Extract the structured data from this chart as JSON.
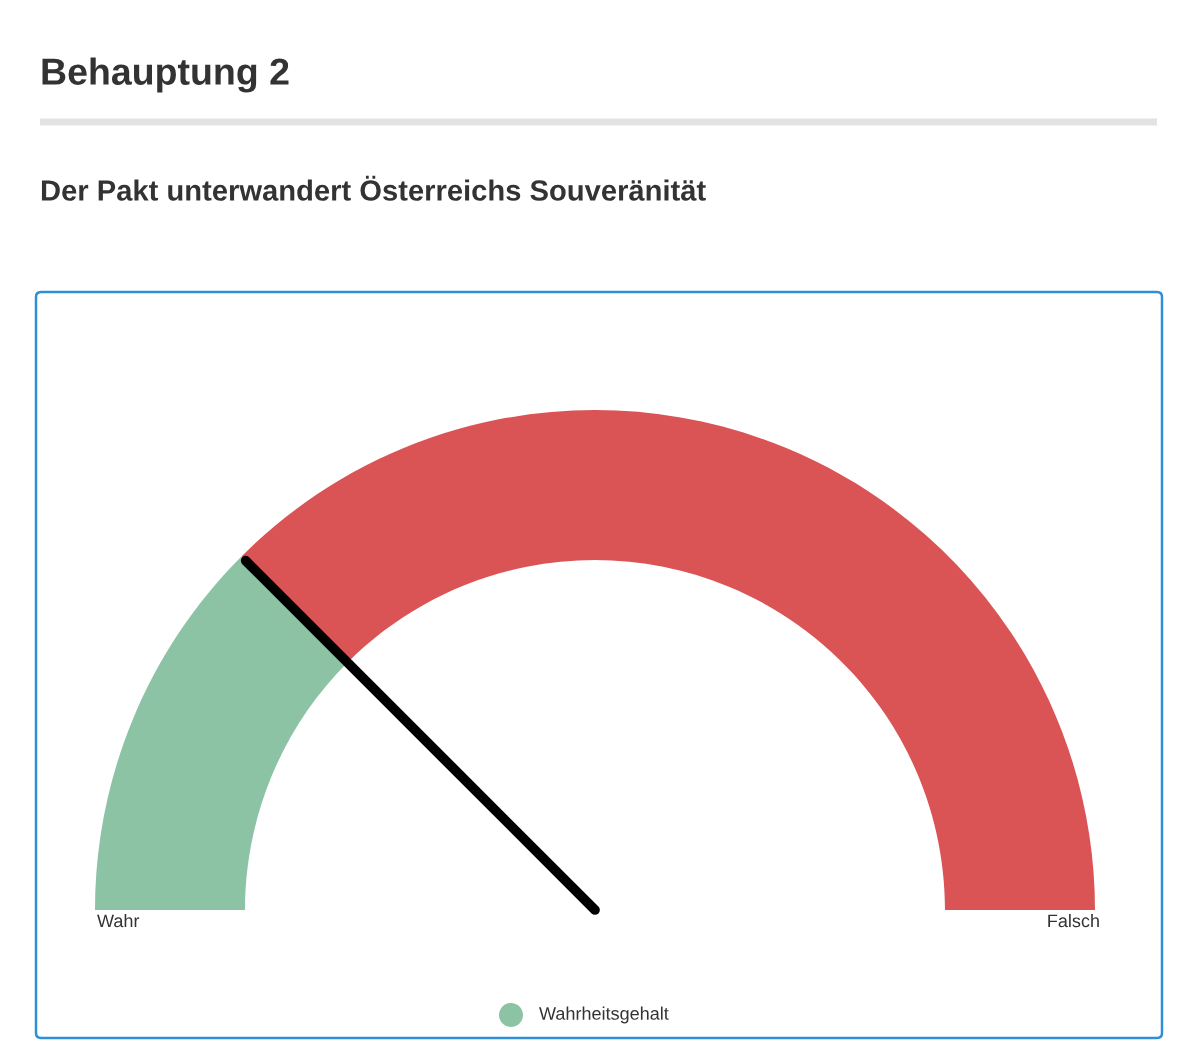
{
  "chart_data": {
    "type": "donut",
    "title": "Behauptung 2",
    "subtitle": "Der Pakt unterwandert Österreichs Souveränität",
    "categories": [
      "Wahr",
      "Falsch"
    ],
    "needle": "Wahr",
    "legend": "bottom",
    "series": [
      {
        "name": "Wahrheitsgehalt",
        "color": "#8cc3a5",
        "values": [
          25,
          75
        ],
        "colors": [
          "#8cc3a5",
          "#da5355"
        ]
      }
    ]
  }
}
